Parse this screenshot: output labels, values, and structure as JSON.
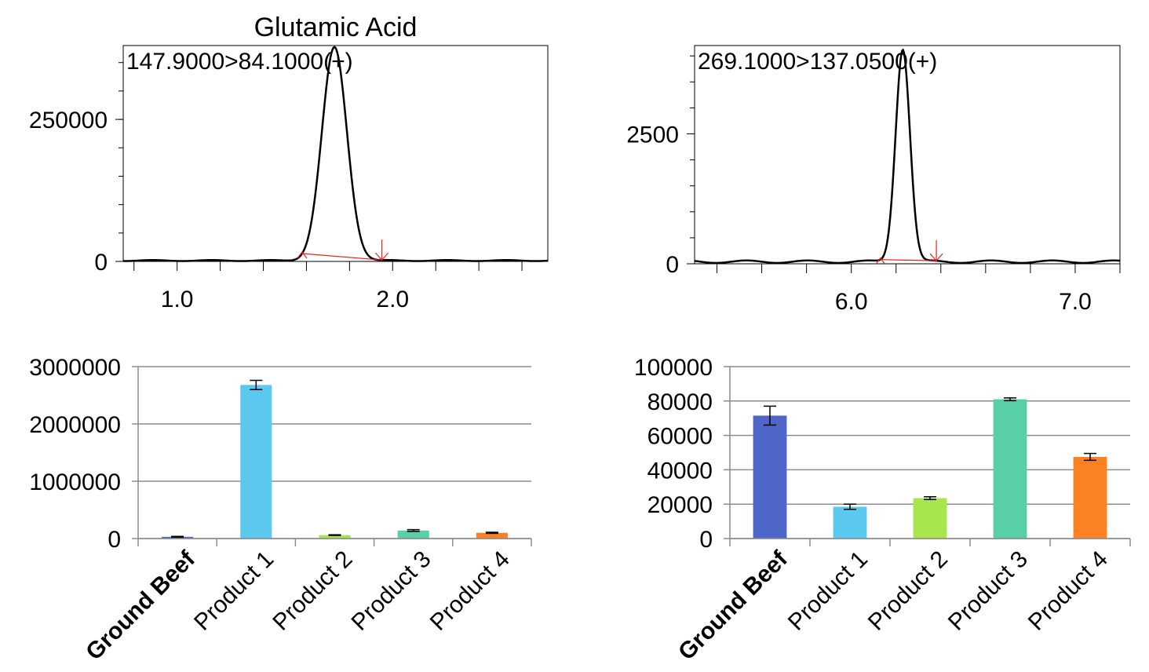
{
  "chart_data": [
    {
      "type": "line",
      "title": "Glutamic Acid",
      "trace_label": "147.9000>84.1000(+)",
      "xlim": [
        0.75,
        2.72
      ],
      "ylim": [
        0,
        380000
      ],
      "x_tick_labels": [
        1.0,
        2.0
      ],
      "x_minor_step": 0.2,
      "y_tick_labels": [
        0,
        250000
      ],
      "y_minor_step": 50000,
      "peak": {
        "apex_x": 1.73,
        "height": 375000,
        "sigma": 0.058,
        "start_x": 1.58,
        "end_x": 1.95
      },
      "baseline": 1500,
      "colors": {
        "trace": "#000000",
        "integration": "#e8201c"
      }
    },
    {
      "type": "line",
      "title": "",
      "trace_label": "269.1000>137.0500(+)",
      "xlim": [
        5.3,
        7.2
      ],
      "ylim": [
        0,
        4200
      ],
      "x_tick_labels": [
        6.0,
        7.0
      ],
      "x_minor_step": 0.2,
      "y_tick_labels": [
        0,
        2500
      ],
      "y_minor_step": 500,
      "peak": {
        "apex_x": 6.23,
        "height": 4100,
        "sigma": 0.032,
        "start_x": 6.13,
        "end_x": 6.38
      },
      "baseline": 40,
      "colors": {
        "trace": "#000000",
        "integration": "#e8201c"
      }
    },
    {
      "type": "bar",
      "categories": [
        "Ground Beef",
        "Product 1",
        "Product 2",
        "Product 3",
        "Product 4"
      ],
      "values": [
        30000,
        2680000,
        60000,
        140000,
        100000
      ],
      "errors": [
        8000,
        80000,
        6000,
        15000,
        10000
      ],
      "ylim": [
        0,
        3000000
      ],
      "y_ticks": [
        0,
        1000000,
        2000000,
        3000000
      ],
      "bar_colors": [
        "#4f66c9",
        "#5bc8f0",
        "#a8e64e",
        "#58cfa6",
        "#fb8123"
      ]
    },
    {
      "type": "bar",
      "categories": [
        "Ground Beef",
        "Product 1",
        "Product 2",
        "Product 3",
        "Product 4"
      ],
      "values": [
        71500,
        18500,
        23500,
        81000,
        47500
      ],
      "errors": [
        5500,
        1500,
        800,
        800,
        2000
      ],
      "ylim": [
        0,
        100000
      ],
      "y_ticks": [
        0,
        20000,
        40000,
        60000,
        80000,
        100000
      ],
      "bar_colors": [
        "#4f66c9",
        "#5bc8f0",
        "#a8e64e",
        "#58cfa6",
        "#fb8123"
      ]
    }
  ]
}
